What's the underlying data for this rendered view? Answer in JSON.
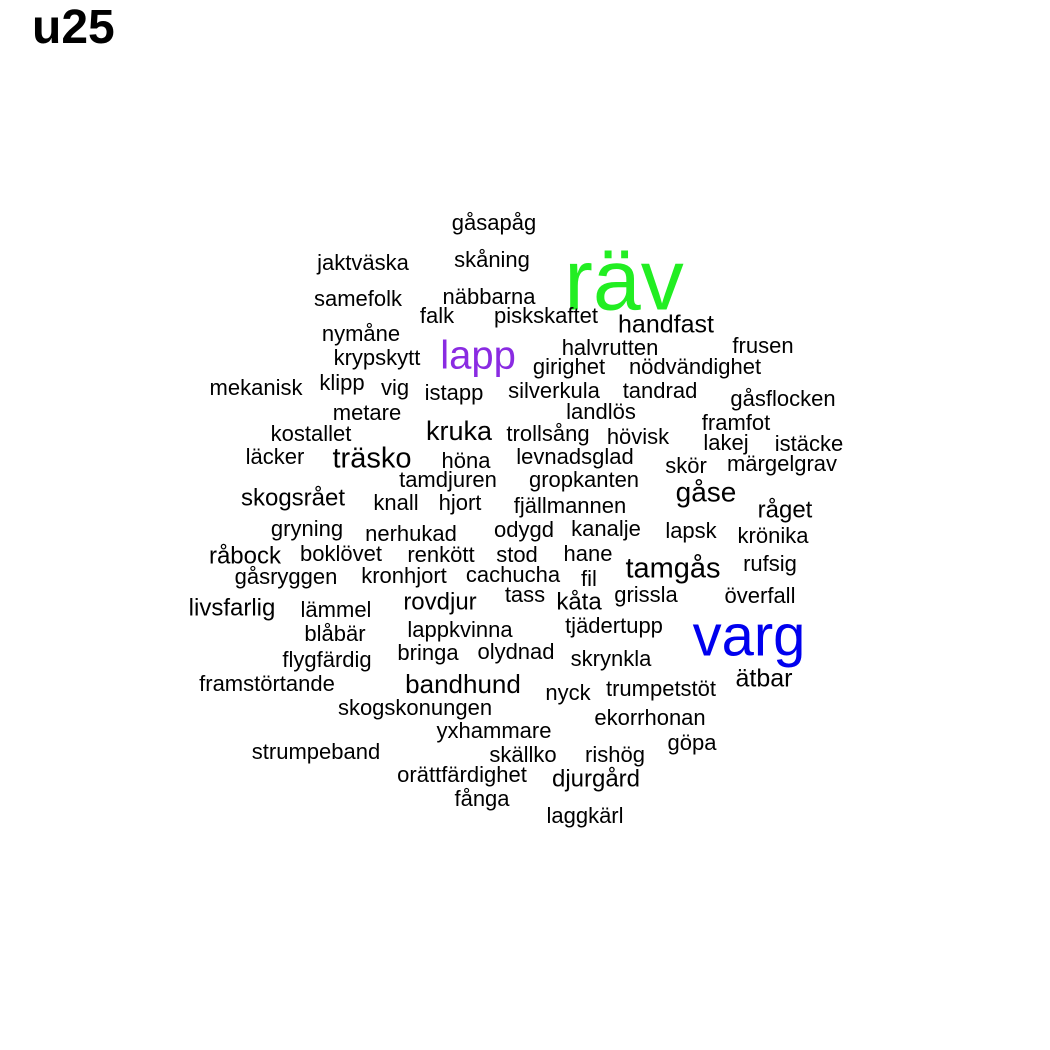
{
  "title": "u25",
  "colors": {
    "default": "#000000",
    "green": "#22ee22",
    "purple": "#8a2be2",
    "blue": "#0000ee"
  },
  "words": [
    {
      "text": "räv",
      "size": "xxl",
      "color": "green"
    },
    {
      "text": "varg",
      "size": "xl",
      "color": "blue"
    },
    {
      "text": "lapp",
      "size": "l",
      "color": "purple"
    },
    {
      "text": "gåsapåg"
    },
    {
      "text": "jaktväska"
    },
    {
      "text": "skåning"
    },
    {
      "text": "samefolk"
    },
    {
      "text": "näbbarna"
    },
    {
      "text": "falk"
    },
    {
      "text": "piskskaftet"
    },
    {
      "text": "handfast",
      "size": "m"
    },
    {
      "text": "nymåne"
    },
    {
      "text": "halvrutten"
    },
    {
      "text": "frusen"
    },
    {
      "text": "krypskytt"
    },
    {
      "text": "girighet"
    },
    {
      "text": "nödvändighet"
    },
    {
      "text": "mekanisk"
    },
    {
      "text": "klipp"
    },
    {
      "text": "vig"
    },
    {
      "text": "istapp"
    },
    {
      "text": "silverkula"
    },
    {
      "text": "tandrad"
    },
    {
      "text": "gåsflocken"
    },
    {
      "text": "metare"
    },
    {
      "text": "landlös"
    },
    {
      "text": "framfot"
    },
    {
      "text": "kostallet"
    },
    {
      "text": "kruka",
      "size": "m"
    },
    {
      "text": "trollsång"
    },
    {
      "text": "hövisk"
    },
    {
      "text": "lakej"
    },
    {
      "text": "istäcke"
    },
    {
      "text": "läcker"
    },
    {
      "text": "träsko",
      "size": "m"
    },
    {
      "text": "höna"
    },
    {
      "text": "levnadsglad"
    },
    {
      "text": "skör"
    },
    {
      "text": "märgelgrav"
    },
    {
      "text": "tamdjuren"
    },
    {
      "text": "gropkanten"
    },
    {
      "text": "skogsrået"
    },
    {
      "text": "knall"
    },
    {
      "text": "hjort"
    },
    {
      "text": "fjällmannen"
    },
    {
      "text": "gåse",
      "size": "m"
    },
    {
      "text": "råget"
    },
    {
      "text": "gryning"
    },
    {
      "text": "nerhukad"
    },
    {
      "text": "odygd"
    },
    {
      "text": "kanalje"
    },
    {
      "text": "lapsk"
    },
    {
      "text": "krönika"
    },
    {
      "text": "råbock"
    },
    {
      "text": "boklövet"
    },
    {
      "text": "renkött"
    },
    {
      "text": "stod"
    },
    {
      "text": "hane"
    },
    {
      "text": "tamgås",
      "size": "m"
    },
    {
      "text": "rufsig"
    },
    {
      "text": "gåsryggen"
    },
    {
      "text": "kronhjort"
    },
    {
      "text": "cachucha"
    },
    {
      "text": "fil"
    },
    {
      "text": "tass"
    },
    {
      "text": "kåta"
    },
    {
      "text": "grissla"
    },
    {
      "text": "överfall"
    },
    {
      "text": "livsfarlig"
    },
    {
      "text": "lämmel"
    },
    {
      "text": "rovdjur"
    },
    {
      "text": "blåbär"
    },
    {
      "text": "lappkvinna"
    },
    {
      "text": "tjädertupp"
    },
    {
      "text": "flygfärdig"
    },
    {
      "text": "bringa"
    },
    {
      "text": "olydnad"
    },
    {
      "text": "skrynkla"
    },
    {
      "text": "framstörtande"
    },
    {
      "text": "bandhund",
      "size": "m"
    },
    {
      "text": "nyck"
    },
    {
      "text": "trumpetstöt"
    },
    {
      "text": "ätbar"
    },
    {
      "text": "skogskonungen"
    },
    {
      "text": "ekorrhonan"
    },
    {
      "text": "yxhammare"
    },
    {
      "text": "göpa"
    },
    {
      "text": "strumpeband"
    },
    {
      "text": "skällko"
    },
    {
      "text": "rishög"
    },
    {
      "text": "orättfärdighet"
    },
    {
      "text": "djurgård"
    },
    {
      "text": "fånga"
    },
    {
      "text": "laggkärl"
    }
  ]
}
